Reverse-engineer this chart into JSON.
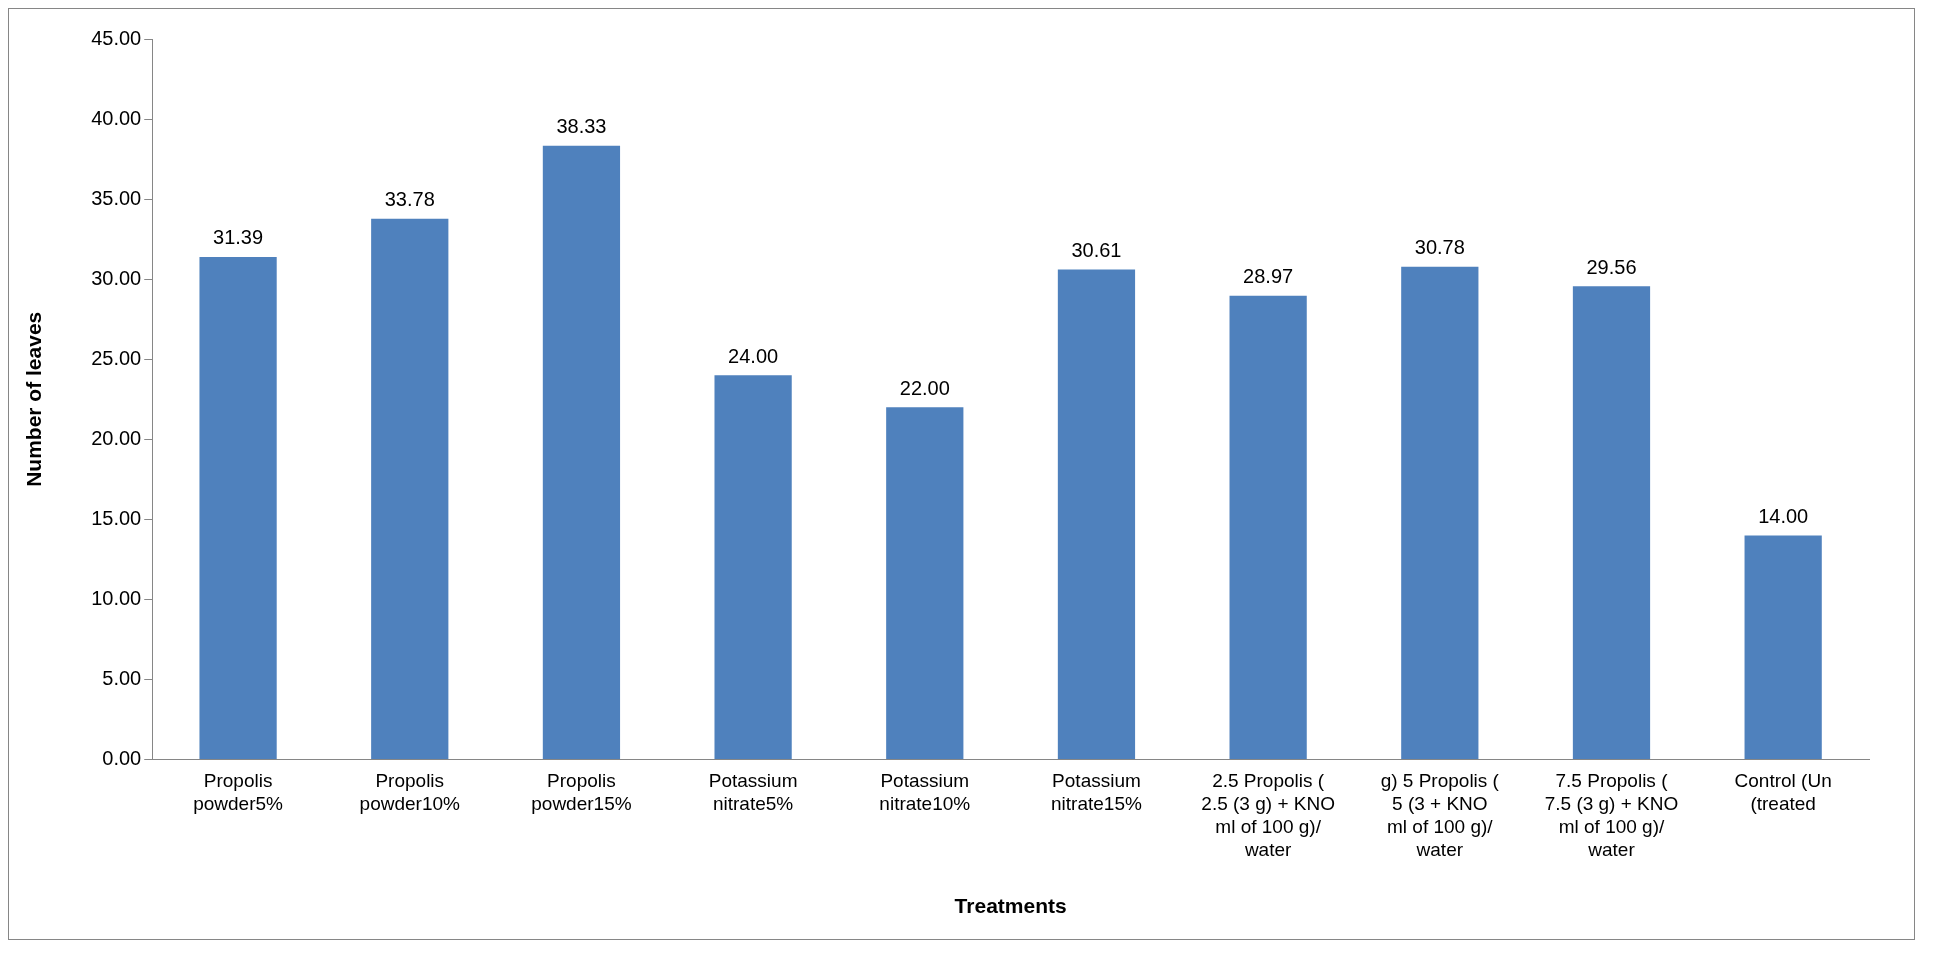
{
  "chart_data": {
    "type": "bar",
    "xlabel": "Treatments",
    "ylabel": "Number of leaves",
    "categories": [
      "Propolis\npowder5%",
      "Propolis\npowder10%",
      "Propolis\npowder15%",
      "Potassium\nnitrate5%",
      "Potassium\nnitrate10%",
      "Potassium\nnitrate15%",
      "2.5 Propolis (\n2.5 (3 g) + KNO\nml of 100 g)/\nwater",
      "g) 5 Propolis (\n5 (3 + KNO\nml of 100 g)/\nwater",
      "7.5 Propolis (\n7.5 (3 g) + KNO\nml of 100 g)/\nwater",
      "Control (Un\n(treated"
    ],
    "values": [
      31.39,
      33.78,
      38.33,
      24.0,
      22.0,
      30.61,
      28.97,
      30.78,
      29.56,
      14.0
    ],
    "value_labels": [
      "31.39",
      "33.78",
      "38.33",
      "24.00",
      "22.00",
      "30.61",
      "28.97",
      "30.78",
      "29.56",
      "14.00"
    ],
    "color": "#4f81bd",
    "ylim": [
      0,
      45
    ],
    "yticks": [
      {
        "value": 0,
        "label": "0.00"
      },
      {
        "value": 5,
        "label": "5.00"
      },
      {
        "value": 10,
        "label": "10.00"
      },
      {
        "value": 15,
        "label": "15.00"
      },
      {
        "value": 20,
        "label": "20.00"
      },
      {
        "value": 25,
        "label": "25.00"
      },
      {
        "value": 30,
        "label": "30.00"
      },
      {
        "value": 35,
        "label": "35.00"
      },
      {
        "value": 40,
        "label": "40.00"
      },
      {
        "value": 45,
        "label": "45.00"
      }
    ],
    "grid": false,
    "legend": false
  }
}
